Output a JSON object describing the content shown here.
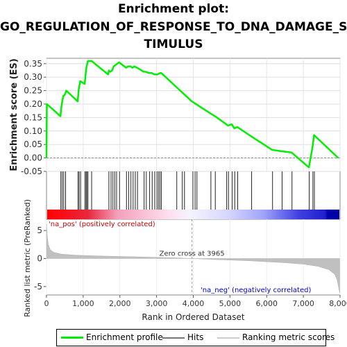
{
  "chart_data": {
    "title_lines": [
      "Enrichment plot:",
      "GO_REGULATION_OF_RESPONSE_TO_DNA_DAMAGE_S",
      "TIMULUS"
    ],
    "es_panel": {
      "type": "line",
      "ylabel": "Enrichment score (ES)",
      "ylim": [
        -0.05,
        0.37
      ],
      "yticks": [
        "0.35",
        "0.30",
        "0.25",
        "0.20",
        "0.15",
        "0.10",
        "0.05",
        "0.00",
        "-0.05"
      ],
      "ytick_values": [
        0.35,
        0.3,
        0.25,
        0.2,
        0.15,
        0.1,
        0.05,
        0.0,
        -0.05
      ],
      "series": [
        {
          "name": "Enrichment profile",
          "color": "#00ee00",
          "x": [
            0,
            10,
            380,
            400,
            430,
            460,
            500,
            540,
            850,
            880,
            920,
            980,
            1040,
            1060,
            1080,
            1100,
            1130,
            1230,
            1680,
            1700,
            1740,
            1790,
            1830,
            1880,
            1930,
            1980,
            2170,
            2230,
            2290,
            2340,
            2390,
            2470,
            2650,
            2700,
            2800,
            2870,
            2940,
            3020,
            3090,
            3130,
            3960,
            4470,
            4590,
            4900,
            4950,
            5050,
            5120,
            5200,
            5580,
            6150,
            6400,
            6680,
            7150,
            7250,
            7290,
            7950
          ],
          "y": [
            0.0,
            0.2,
            0.155,
            0.185,
            0.21,
            0.23,
            0.235,
            0.25,
            0.21,
            0.255,
            0.285,
            0.28,
            0.275,
            0.3,
            0.33,
            0.345,
            0.36,
            0.36,
            0.31,
            0.325,
            0.32,
            0.325,
            0.34,
            0.345,
            0.35,
            0.355,
            0.335,
            0.34,
            0.34,
            0.335,
            0.34,
            0.335,
            0.32,
            0.32,
            0.315,
            0.315,
            0.31,
            0.31,
            0.315,
            0.315,
            0.21,
            0.165,
            0.155,
            0.125,
            0.12,
            0.125,
            0.11,
            0.115,
            0.08,
            0.03,
            0.025,
            0.02,
            -0.035,
            0.04,
            0.085,
            0.0
          ]
        }
      ]
    },
    "hits": [
      390,
      430,
      470,
      520,
      860,
      890,
      930,
      1050,
      1080,
      1100,
      1130,
      1230,
      1700,
      1760,
      1810,
      1860,
      1910,
      1990,
      2180,
      2240,
      2300,
      2360,
      2420,
      2480,
      2660,
      2720,
      2810,
      2880,
      2950,
      3010,
      3050,
      3090,
      3130,
      3550,
      3700,
      3760,
      3990,
      4050,
      4100,
      4480,
      4600,
      4910,
      4960,
      5060,
      5130,
      5210,
      5590,
      6160,
      6420,
      6690,
      7160,
      7260,
      7300
    ],
    "colorbar": {
      "pos_label": "'na_pos' (positively correlated)",
      "neg_label": "'na_neg' (negatively correlated)",
      "pos_color": "#cc0000",
      "neg_color": "#0000cc"
    },
    "metric_panel": {
      "type": "area",
      "ylabel": "Ranked list metric (PreRanked)",
      "ylim": [
        -6.5,
        7
      ],
      "yticks": [
        "5",
        "0",
        "-5"
      ],
      "ytick_values": [
        5,
        0,
        -5
      ],
      "zero_cross_label": "Zero cross at 3965",
      "zero_cross": 3965,
      "profile_x": [
        0,
        20,
        50,
        100,
        200,
        400,
        800,
        1500,
        2500,
        3500,
        3965,
        4500,
        5500,
        6500,
        7000,
        7400,
        7700,
        7850,
        7920,
        7960,
        7990
      ],
      "profile_y": [
        6.2,
        4.0,
        2.5,
        1.6,
        1.1,
        0.8,
        0.6,
        0.45,
        0.3,
        0.12,
        0.0,
        -0.15,
        -0.4,
        -0.75,
        -1.0,
        -1.4,
        -2.0,
        -2.8,
        -3.8,
        -5.2,
        -6.2
      ]
    },
    "x_axis": {
      "label": "Rank in Ordered Dataset",
      "ticks": [
        "0",
        "1,000",
        "2,000",
        "3,000",
        "4,000",
        "5,000",
        "6,000",
        "7,000",
        "8,000"
      ],
      "tick_values": [
        0,
        1000,
        2000,
        3000,
        4000,
        5000,
        6000,
        7000,
        8000
      ],
      "max": 8000
    },
    "legend": {
      "items": [
        {
          "label": "Enrichment profile",
          "color": "#00ee00"
        },
        {
          "label": "Hits",
          "color": "#000000"
        },
        {
          "label": "Ranking metric scores",
          "color": "#c0c0c0"
        }
      ]
    }
  }
}
